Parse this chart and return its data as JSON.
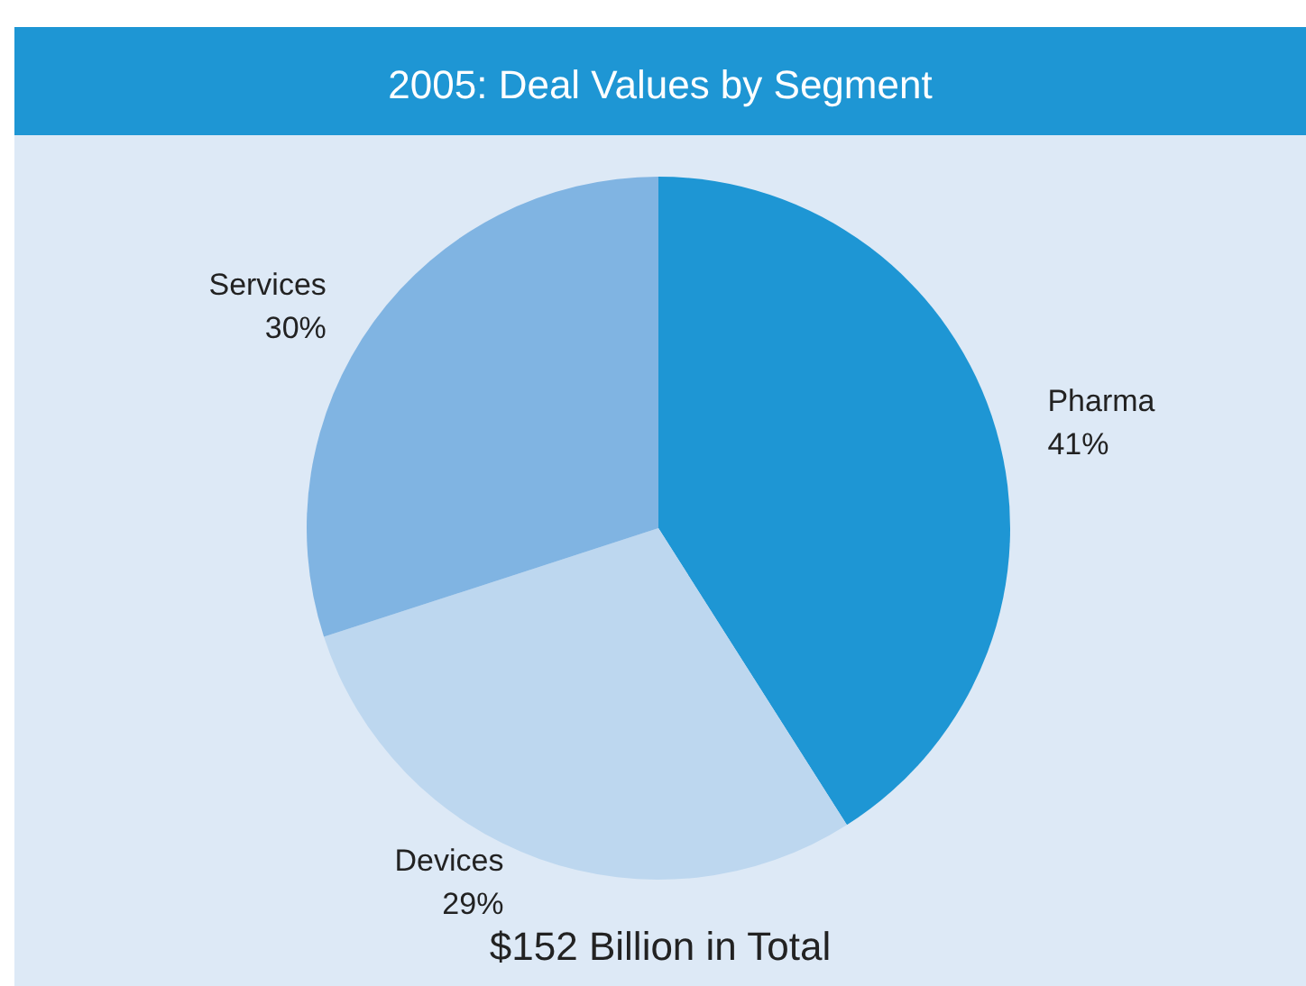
{
  "chart_data": {
    "type": "pie",
    "title": "2005: Deal Values by Segment",
    "categories": [
      "Pharma",
      "Devices",
      "Services"
    ],
    "values": [
      41,
      29,
      30
    ],
    "value_labels": [
      "41%",
      "29%",
      "30%"
    ],
    "colors": [
      "#1e96d4",
      "#bdd7ef",
      "#80b4e2"
    ],
    "annotations": [
      "$152 Billion in Total"
    ]
  }
}
